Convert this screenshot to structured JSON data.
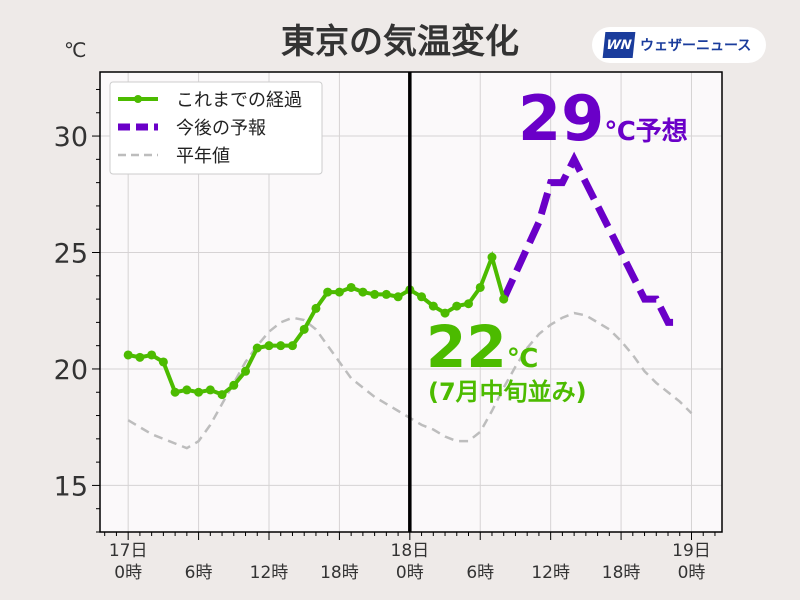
{
  "title": "東京の気温変化",
  "unit_label": "℃",
  "brand": {
    "mark": "WN",
    "name": "ウェザーニュース"
  },
  "annotations": {
    "forecast_value": "29",
    "forecast_suffix": "℃予想",
    "current_value": "22",
    "current_unit": "℃",
    "current_note": "(7月中旬並み)"
  },
  "colors": {
    "observed": "#4cbb00",
    "forecast": "#6a00c8",
    "normal": "#bdbdbd",
    "now_line": "#000000"
  },
  "chart_data": {
    "type": "line",
    "title": "東京の気温変化",
    "ylabel": "℃",
    "xlabel": "",
    "ylim": [
      13.0,
      32.75
    ],
    "xlim_hours": [
      -2.4,
      50.6
    ],
    "y_ticks": [
      15,
      20,
      25,
      30
    ],
    "x_ticks": [
      {
        "hour": 0,
        "label": [
          "17日",
          "0時"
        ]
      },
      {
        "hour": 6,
        "label": [
          "",
          "6時"
        ]
      },
      {
        "hour": 12,
        "label": [
          "",
          "12時"
        ]
      },
      {
        "hour": 18,
        "label": [
          "",
          "18時"
        ]
      },
      {
        "hour": 24,
        "label": [
          "18日",
          "0時"
        ]
      },
      {
        "hour": 30,
        "label": [
          "",
          "6時"
        ]
      },
      {
        "hour": 36,
        "label": [
          "",
          "12時"
        ]
      },
      {
        "hour": 42,
        "label": [
          "",
          "18時"
        ]
      },
      {
        "hour": 48,
        "label": [
          "19日",
          "0時"
        ]
      }
    ],
    "now_hour": 24,
    "grid": true,
    "legend_position": "top-left",
    "series": [
      {
        "name": "これまでの経過",
        "style": "solid-markers",
        "x": [
          0,
          1,
          2,
          3,
          4,
          5,
          6,
          7,
          8,
          9,
          10,
          11,
          12,
          13,
          14,
          15,
          16,
          17,
          18,
          19,
          20,
          21,
          22,
          23,
          24,
          25,
          26,
          27,
          28,
          29,
          30,
          31,
          32
        ],
        "values": [
          20.6,
          20.5,
          20.6,
          20.3,
          19.0,
          19.1,
          19.0,
          19.1,
          18.9,
          19.3,
          19.9,
          20.9,
          21.0,
          21.0,
          21.0,
          21.7,
          22.6,
          23.3,
          23.3,
          23.5,
          23.3,
          23.2,
          23.2,
          23.1,
          23.4,
          23.1,
          22.7,
          22.4,
          22.7,
          22.8,
          23.5,
          24.8,
          23.0
        ]
      },
      {
        "name": "今後の予報",
        "style": "dashed-thick",
        "x": [
          32,
          35,
          36,
          37,
          38,
          44,
          45,
          46,
          47
        ],
        "values": [
          23.0,
          26.3,
          28.0,
          28.0,
          29.0,
          23.0,
          23.0,
          22.0,
          22.0
        ]
      },
      {
        "name": "平年値",
        "style": "dashed-thin",
        "x": [
          0,
          1,
          2,
          3,
          4,
          5,
          6,
          7,
          8,
          9,
          10,
          11,
          12,
          13,
          14,
          15,
          16,
          17,
          18,
          19,
          20,
          21,
          22,
          23,
          24,
          25,
          26,
          27,
          28,
          29,
          30,
          31,
          32,
          33,
          34,
          35,
          36,
          37,
          38,
          39,
          40,
          41,
          42,
          43,
          44,
          45,
          46,
          47,
          48
        ],
        "values": [
          17.8,
          17.5,
          17.2,
          17.0,
          16.8,
          16.6,
          16.9,
          17.6,
          18.5,
          19.4,
          20.3,
          21.0,
          21.6,
          22.0,
          22.2,
          22.1,
          21.7,
          21.0,
          20.3,
          19.6,
          19.2,
          18.8,
          18.5,
          18.2,
          17.9,
          17.6,
          17.4,
          17.1,
          16.9,
          16.9,
          17.3,
          18.2,
          19.2,
          20.1,
          20.9,
          21.5,
          21.9,
          22.2,
          22.4,
          22.3,
          22.0,
          21.7,
          21.2,
          20.6,
          19.9,
          19.4,
          19.0,
          18.6,
          18.1
        ]
      }
    ]
  }
}
